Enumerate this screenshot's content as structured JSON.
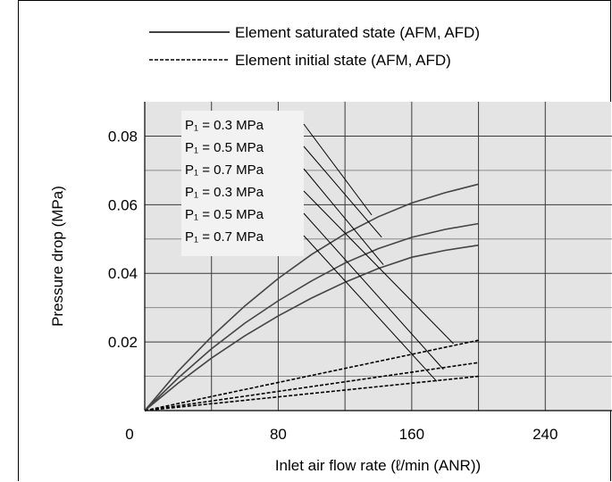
{
  "chart_data": {
    "type": "line",
    "xlabel": "Inlet air flow rate (ℓ/min (ANR))",
    "ylabel": "Pressure drop (MPa)",
    "xlim": [
      0,
      280
    ],
    "ylim": [
      0,
      0.09
    ],
    "x_ticks": [
      "0",
      "80",
      "160",
      "240"
    ],
    "x_tick_values": [
      0,
      80,
      160,
      240
    ],
    "y_ticks": [
      "0.02",
      "0.04",
      "0.06",
      "0.08"
    ],
    "y_tick_values": [
      0.02,
      0.04,
      0.06,
      0.08
    ],
    "grid": true,
    "legend": [
      {
        "label": "Element saturated state (AFM, AFD)",
        "style": "solid"
      },
      {
        "label": "Element initial state (AFM, AFD)",
        "style": "dashed"
      }
    ],
    "series": [
      {
        "label": "P₁ = 0.3 MPa",
        "style": "solid",
        "x": [
          0,
          20,
          40,
          60,
          80,
          100,
          120,
          140,
          160,
          180,
          200
        ],
        "y": [
          0,
          0.0115,
          0.0215,
          0.0305,
          0.0385,
          0.0455,
          0.0515,
          0.0565,
          0.0605,
          0.0635,
          0.066
        ]
      },
      {
        "label": "P₁ = 0.5 MPa",
        "style": "solid",
        "x": [
          0,
          20,
          40,
          60,
          80,
          100,
          120,
          140,
          160,
          180,
          200
        ],
        "y": [
          0,
          0.0095,
          0.018,
          0.0255,
          0.032,
          0.0378,
          0.043,
          0.0472,
          0.0505,
          0.0528,
          0.0545
        ]
      },
      {
        "label": "P₁ = 0.7 MPa",
        "style": "solid",
        "x": [
          0,
          20,
          40,
          60,
          80,
          100,
          120,
          140,
          160,
          180,
          200
        ],
        "y": [
          0,
          0.008,
          0.0153,
          0.0218,
          0.0276,
          0.0328,
          0.0374,
          0.0414,
          0.0447,
          0.0467,
          0.0482
        ]
      },
      {
        "label": "P₁ = 0.3 MPa",
        "style": "dashed",
        "x": [
          0,
          200
        ],
        "y": [
          0,
          0.0205
        ]
      },
      {
        "label": "P₁ = 0.5 MPa",
        "style": "dashed",
        "x": [
          0,
          200
        ],
        "y": [
          0,
          0.014
        ]
      },
      {
        "label": "P₁ = 0.7 MPa",
        "style": "dashed",
        "x": [
          0,
          200
        ],
        "y": [
          0,
          0.01
        ]
      }
    ],
    "leader_targets": [
      {
        "x": 136,
        "y": 0.057
      },
      {
        "x": 142,
        "y": 0.0505
      },
      {
        "x": 143,
        "y": 0.0425
      },
      {
        "x": 185,
        "y": 0.0195
      },
      {
        "x": 179,
        "y": 0.012
      },
      {
        "x": 175,
        "y": 0.0085
      }
    ]
  }
}
